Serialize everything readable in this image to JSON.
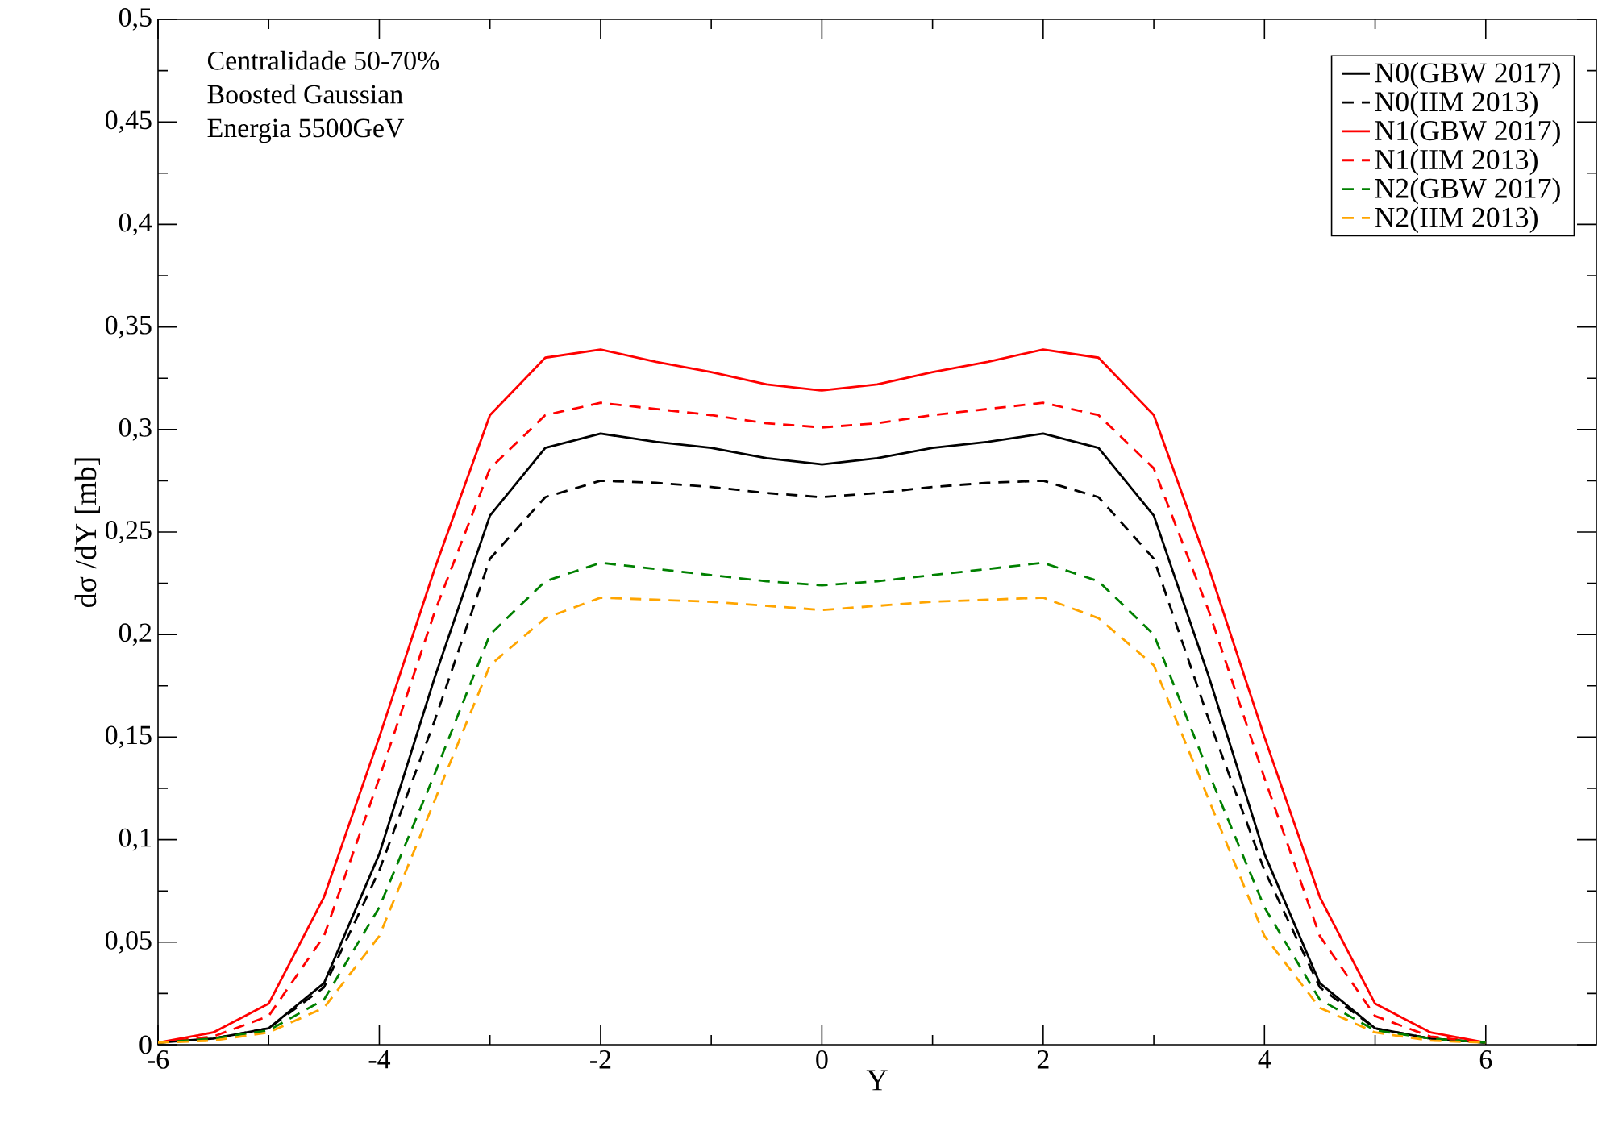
{
  "chart_data": {
    "type": "line",
    "xlabel": "Y",
    "ylabel": "dσ /dY [mb]",
    "annotations": [
      "Centralidade 50-70%",
      "Boosted Gaussian",
      "Energia 5500GeV"
    ],
    "x": [
      -6,
      -5.5,
      -5,
      -4.5,
      -4,
      -3.5,
      -3,
      -2.5,
      -2,
      -1.5,
      -1,
      -0.5,
      0,
      0.5,
      1,
      1.5,
      2,
      2.5,
      3,
      3.5,
      4,
      4.5,
      5,
      5.5,
      6
    ],
    "series": [
      {
        "name": "N0(GBW 2017)",
        "color": "#000000",
        "line_style": "solid",
        "values": [
          0.001,
          0.003,
          0.008,
          0.03,
          0.093,
          0.179,
          0.258,
          0.291,
          0.298,
          0.294,
          0.291,
          0.286,
          0.283,
          0.286,
          0.291,
          0.294,
          0.298,
          0.291,
          0.258,
          0.179,
          0.093,
          0.03,
          0.008,
          0.003,
          0.001
        ]
      },
      {
        "name": "N0(IIM 2013)",
        "color": "#000000",
        "line_style": "dashed",
        "values": [
          0.001,
          0.003,
          0.008,
          0.028,
          0.085,
          0.158,
          0.237,
          0.267,
          0.275,
          0.274,
          0.272,
          0.269,
          0.267,
          0.269,
          0.272,
          0.274,
          0.275,
          0.267,
          0.237,
          0.158,
          0.085,
          0.028,
          0.008,
          0.003,
          0.001
        ]
      },
      {
        "name": "N1(GBW 2017)",
        "color": "#ff0000",
        "line_style": "solid",
        "values": [
          0.001,
          0.006,
          0.02,
          0.072,
          0.15,
          0.232,
          0.307,
          0.335,
          0.339,
          0.333,
          0.328,
          0.322,
          0.319,
          0.322,
          0.328,
          0.333,
          0.339,
          0.335,
          0.307,
          0.232,
          0.15,
          0.072,
          0.02,
          0.006,
          0.001
        ]
      },
      {
        "name": "N1(IIM 2013)",
        "color": "#ff0000",
        "line_style": "dashed",
        "values": [
          0.001,
          0.004,
          0.014,
          0.053,
          0.13,
          0.211,
          0.281,
          0.307,
          0.313,
          0.31,
          0.307,
          0.303,
          0.301,
          0.303,
          0.307,
          0.31,
          0.313,
          0.307,
          0.281,
          0.211,
          0.13,
          0.053,
          0.014,
          0.004,
          0.001
        ]
      },
      {
        "name": "N2(GBW 2017)",
        "color": "#008000",
        "line_style": "dashed",
        "values": [
          0.001,
          0.003,
          0.007,
          0.022,
          0.067,
          0.132,
          0.2,
          0.226,
          0.235,
          0.232,
          0.229,
          0.226,
          0.224,
          0.226,
          0.229,
          0.232,
          0.235,
          0.226,
          0.2,
          0.132,
          0.067,
          0.022,
          0.007,
          0.003,
          0.001
        ]
      },
      {
        "name": "N2(IIM 2013)",
        "color": "#ffa500",
        "line_style": "dashed",
        "values": [
          0.001,
          0.002,
          0.006,
          0.018,
          0.053,
          0.119,
          0.185,
          0.208,
          0.218,
          0.217,
          0.216,
          0.214,
          0.212,
          0.214,
          0.216,
          0.217,
          0.218,
          0.208,
          0.185,
          0.119,
          0.053,
          0.018,
          0.006,
          0.002,
          0.001
        ]
      }
    ],
    "xlim": [
      -6,
      7
    ],
    "xticks": [
      -6,
      -4,
      -2,
      0,
      2,
      4,
      6
    ],
    "ylim": [
      0,
      0.5
    ],
    "yticks": [
      {
        "value": 0,
        "label": "0"
      },
      {
        "value": 0.05,
        "label": "0,05"
      },
      {
        "value": 0.1,
        "label": "0,1"
      },
      {
        "value": 0.15,
        "label": "0,15"
      },
      {
        "value": 0.2,
        "label": "0,2"
      },
      {
        "value": 0.25,
        "label": "0,25"
      },
      {
        "value": 0.3,
        "label": "0,3"
      },
      {
        "value": 0.35,
        "label": "0,35"
      },
      {
        "value": 0.4,
        "label": "0,4"
      },
      {
        "value": 0.45,
        "label": "0,45"
      },
      {
        "value": 0.5,
        "label": "0,5"
      }
    ],
    "legend": "top right",
    "marker": "none",
    "grid": false
  }
}
